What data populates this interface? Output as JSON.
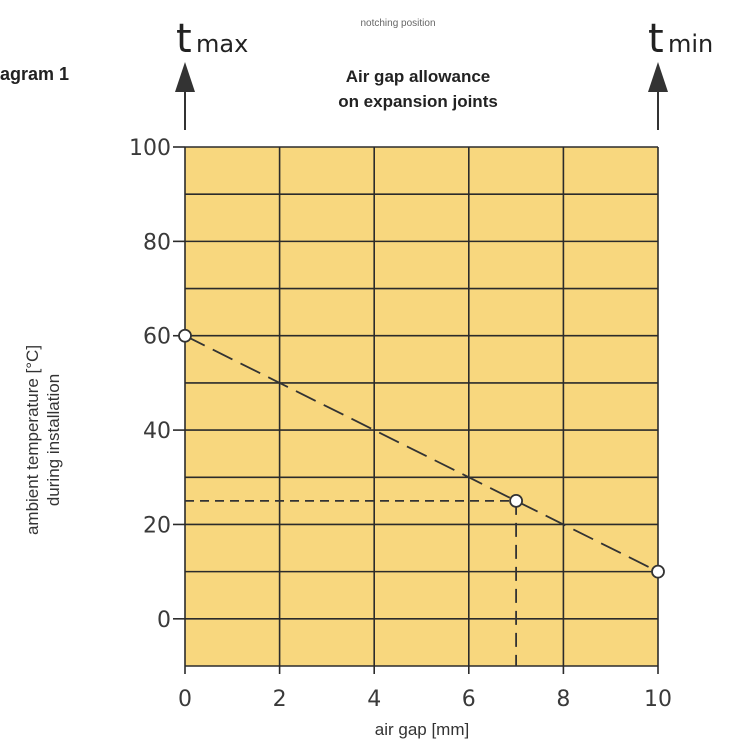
{
  "header": {
    "notching_label": "notching position",
    "diagram_label": "agram 1",
    "t_max": {
      "base": "t",
      "sub": "max"
    },
    "t_min": {
      "base": "t",
      "sub": "min"
    }
  },
  "colors": {
    "plot_bg": "#f8d77e",
    "grid": "#2b2b2b",
    "line": "#333333",
    "text": "#333333"
  },
  "chart_data": {
    "type": "line",
    "title_lines": [
      "Air gap allowance",
      "on expansion joints"
    ],
    "xlabel": "air gap [mm]",
    "ylabel_lines": [
      "ambient temperature [°C]",
      "during installation"
    ],
    "xlim": [
      0,
      10
    ],
    "ylim": [
      -10,
      100
    ],
    "x_ticks": [
      0,
      2,
      4,
      6,
      8,
      10
    ],
    "y_ticks": [
      0,
      20,
      40,
      60,
      80,
      100
    ],
    "x_grid": [
      0,
      2,
      4,
      6,
      8,
      10
    ],
    "y_grid": [
      -10,
      0,
      10,
      20,
      30,
      40,
      50,
      60,
      70,
      80,
      90,
      100
    ],
    "series": [
      {
        "values": [
          [
            0,
            60
          ],
          [
            10,
            10
          ]
        ],
        "style": "dashed"
      }
    ],
    "markers": [
      [
        0,
        60
      ],
      [
        7,
        25
      ],
      [
        10,
        10
      ]
    ],
    "reference_point": {
      "x": 7,
      "y": 25
    }
  }
}
